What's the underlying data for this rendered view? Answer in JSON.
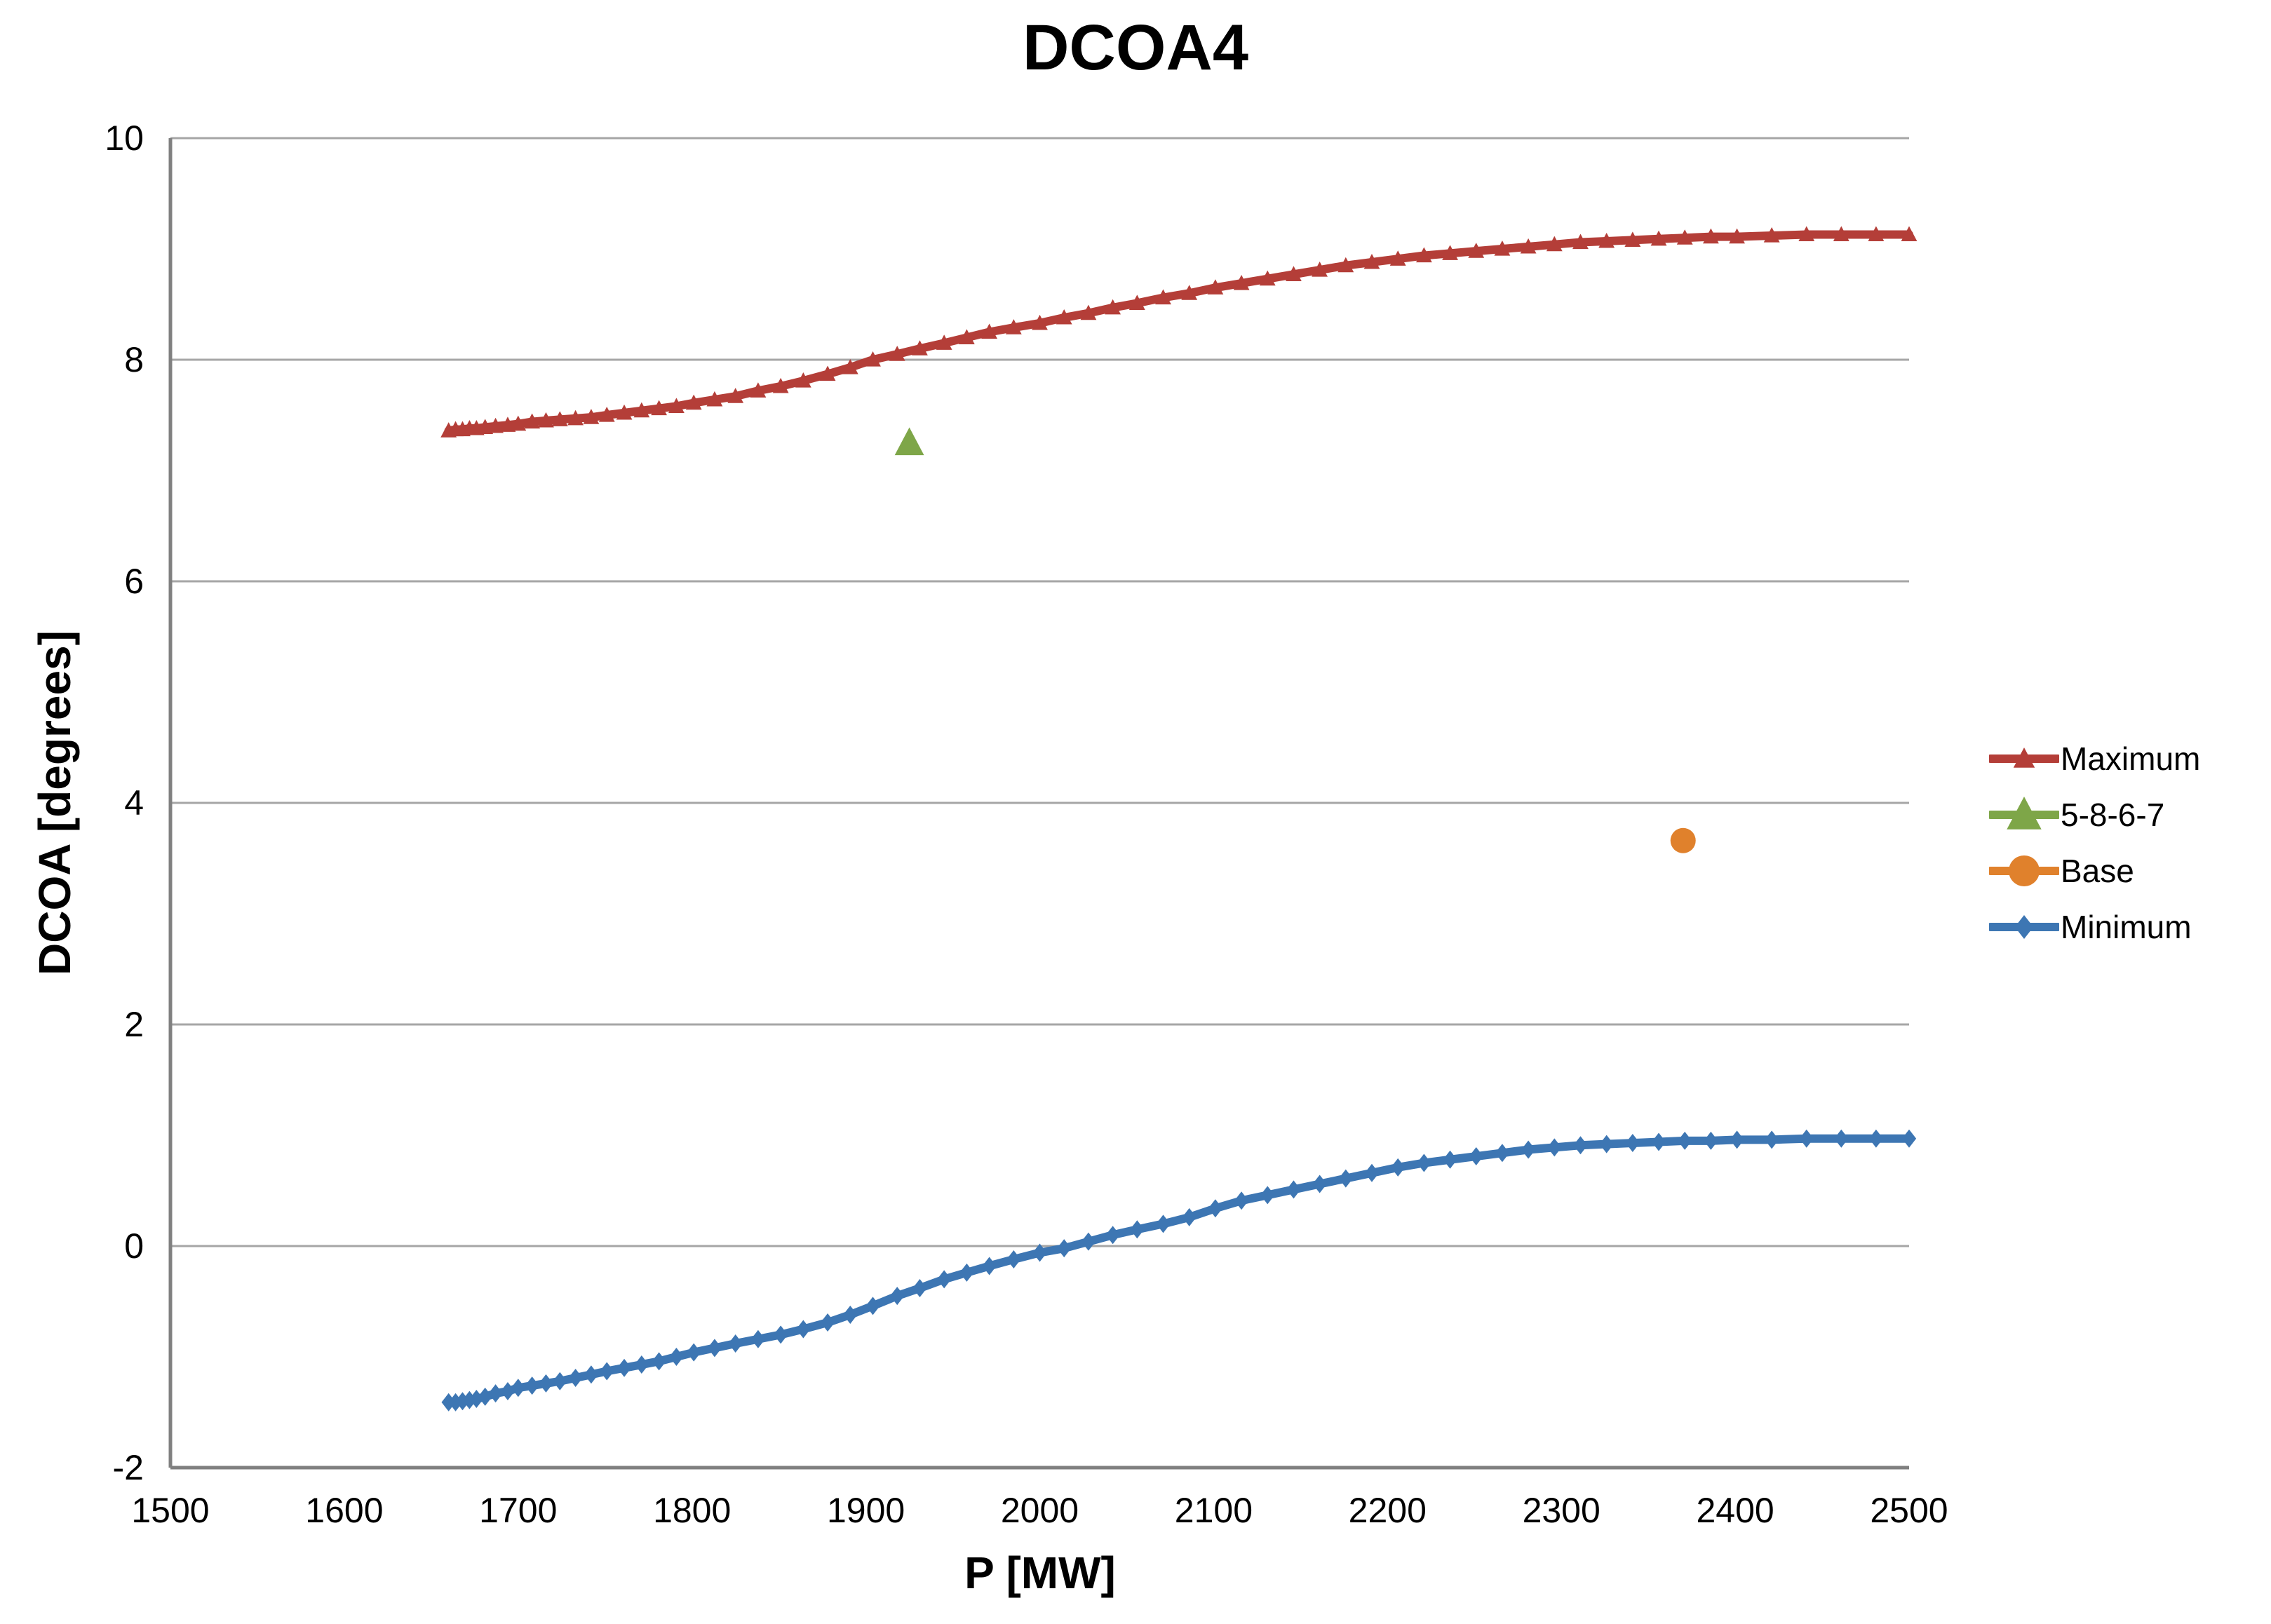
{
  "title": "DCOA4",
  "colors": {
    "background": "#ffffff",
    "gridline": "#a6a6a6",
    "axis_line": "#808080",
    "text": "#000000",
    "maximum_series": "#b43e38",
    "green_series": "#7ea648",
    "base_series": "#e0812c",
    "minimum_series": "#3d76b3"
  },
  "legend": {
    "position": "right-middle",
    "items": [
      "Maximum",
      "5-8-6-7",
      "Base",
      "Minimum"
    ]
  },
  "chart_data": {
    "type": "line",
    "title": "DCOA4",
    "xlabel": "P [MW]",
    "ylabel": "DCOA [degrees]",
    "xlim": [
      1500,
      2500
    ],
    "ylim": [
      -2,
      10
    ],
    "x_ticks": [
      1500,
      1600,
      1700,
      1800,
      1900,
      2000,
      2100,
      2200,
      2300,
      2400,
      2500
    ],
    "y_ticks": [
      -2,
      0,
      2,
      4,
      6,
      8,
      10
    ],
    "grid": "horizontal",
    "legend_position": "right-middle",
    "series": [
      {
        "name": "Maximum",
        "color": "#b43e38",
        "line": true,
        "marker": "triangle",
        "marker_size": 12,
        "points": [
          [
            1660,
            7.36
          ],
          [
            1664,
            7.37
          ],
          [
            1668,
            7.37
          ],
          [
            1672,
            7.38
          ],
          [
            1676,
            7.38
          ],
          [
            1681,
            7.39
          ],
          [
            1687,
            7.4
          ],
          [
            1694,
            7.41
          ],
          [
            1700,
            7.42
          ],
          [
            1708,
            7.44
          ],
          [
            1716,
            7.45
          ],
          [
            1724,
            7.46
          ],
          [
            1733,
            7.47
          ],
          [
            1742,
            7.48
          ],
          [
            1751,
            7.5
          ],
          [
            1761,
            7.52
          ],
          [
            1771,
            7.54
          ],
          [
            1781,
            7.56
          ],
          [
            1791,
            7.58
          ],
          [
            1801,
            7.61
          ],
          [
            1813,
            7.64
          ],
          [
            1825,
            7.67
          ],
          [
            1838,
            7.72
          ],
          [
            1851,
            7.76
          ],
          [
            1864,
            7.81
          ],
          [
            1878,
            7.87
          ],
          [
            1891,
            7.93
          ],
          [
            1904,
            8.0
          ],
          [
            1918,
            8.05
          ],
          [
            1931,
            8.1
          ],
          [
            1945,
            8.15
          ],
          [
            1958,
            8.2
          ],
          [
            1971,
            8.25
          ],
          [
            1985,
            8.29
          ],
          [
            2000,
            8.33
          ],
          [
            2014,
            8.38
          ],
          [
            2028,
            8.42
          ],
          [
            2042,
            8.47
          ],
          [
            2056,
            8.51
          ],
          [
            2071,
            8.56
          ],
          [
            2086,
            8.6
          ],
          [
            2101,
            8.65
          ],
          [
            2116,
            8.69
          ],
          [
            2131,
            8.73
          ],
          [
            2146,
            8.77
          ],
          [
            2161,
            8.81
          ],
          [
            2176,
            8.85
          ],
          [
            2191,
            8.88
          ],
          [
            2206,
            8.91
          ],
          [
            2221,
            8.94
          ],
          [
            2236,
            8.96
          ],
          [
            2251,
            8.98
          ],
          [
            2266,
            9.0
          ],
          [
            2281,
            9.02
          ],
          [
            2296,
            9.04
          ],
          [
            2311,
            9.06
          ],
          [
            2326,
            9.07
          ],
          [
            2341,
            9.08
          ],
          [
            2356,
            9.09
          ],
          [
            2371,
            9.1
          ],
          [
            2386,
            9.11
          ],
          [
            2401,
            9.11
          ],
          [
            2421,
            9.12
          ],
          [
            2441,
            9.13
          ],
          [
            2461,
            9.13
          ],
          [
            2481,
            9.13
          ],
          [
            2500,
            9.13
          ]
        ]
      },
      {
        "name": "5-8-6-7",
        "color": "#7ea648",
        "line": false,
        "marker": "triangle",
        "marker_size": 22,
        "points": [
          [
            1925,
            7.25
          ]
        ]
      },
      {
        "name": "Base",
        "color": "#e0812c",
        "line": false,
        "marker": "circle",
        "marker_size": 18,
        "points": [
          [
            2370,
            3.66
          ]
        ]
      },
      {
        "name": "Minimum",
        "color": "#3d76b3",
        "line": true,
        "marker": "diamond",
        "marker_size": 13,
        "points": [
          [
            1660,
            -1.41
          ],
          [
            1664,
            -1.41
          ],
          [
            1668,
            -1.4
          ],
          [
            1672,
            -1.39
          ],
          [
            1676,
            -1.38
          ],
          [
            1681,
            -1.36
          ],
          [
            1687,
            -1.33
          ],
          [
            1694,
            -1.31
          ],
          [
            1700,
            -1.28
          ],
          [
            1708,
            -1.26
          ],
          [
            1716,
            -1.24
          ],
          [
            1724,
            -1.22
          ],
          [
            1733,
            -1.19
          ],
          [
            1742,
            -1.16
          ],
          [
            1751,
            -1.13
          ],
          [
            1761,
            -1.1
          ],
          [
            1771,
            -1.07
          ],
          [
            1781,
            -1.04
          ],
          [
            1791,
            -1.0
          ],
          [
            1801,
            -0.96
          ],
          [
            1813,
            -0.92
          ],
          [
            1825,
            -0.88
          ],
          [
            1838,
            -0.84
          ],
          [
            1851,
            -0.8
          ],
          [
            1864,
            -0.75
          ],
          [
            1878,
            -0.69
          ],
          [
            1891,
            -0.62
          ],
          [
            1904,
            -0.54
          ],
          [
            1918,
            -0.45
          ],
          [
            1931,
            -0.38
          ],
          [
            1945,
            -0.3
          ],
          [
            1958,
            -0.24
          ],
          [
            1971,
            -0.18
          ],
          [
            1985,
            -0.12
          ],
          [
            2000,
            -0.06
          ],
          [
            2014,
            -0.02
          ],
          [
            2028,
            0.04
          ],
          [
            2042,
            0.1
          ],
          [
            2056,
            0.15
          ],
          [
            2071,
            0.2
          ],
          [
            2086,
            0.26
          ],
          [
            2101,
            0.34
          ],
          [
            2116,
            0.41
          ],
          [
            2131,
            0.46
          ],
          [
            2146,
            0.51
          ],
          [
            2161,
            0.56
          ],
          [
            2176,
            0.61
          ],
          [
            2191,
            0.66
          ],
          [
            2206,
            0.71
          ],
          [
            2221,
            0.75
          ],
          [
            2236,
            0.78
          ],
          [
            2251,
            0.81
          ],
          [
            2266,
            0.84
          ],
          [
            2281,
            0.87
          ],
          [
            2296,
            0.89
          ],
          [
            2311,
            0.91
          ],
          [
            2326,
            0.92
          ],
          [
            2341,
            0.93
          ],
          [
            2356,
            0.94
          ],
          [
            2371,
            0.95
          ],
          [
            2386,
            0.95
          ],
          [
            2401,
            0.96
          ],
          [
            2421,
            0.96
          ],
          [
            2441,
            0.97
          ],
          [
            2461,
            0.97
          ],
          [
            2481,
            0.97
          ],
          [
            2500,
            0.97
          ]
        ]
      }
    ]
  }
}
